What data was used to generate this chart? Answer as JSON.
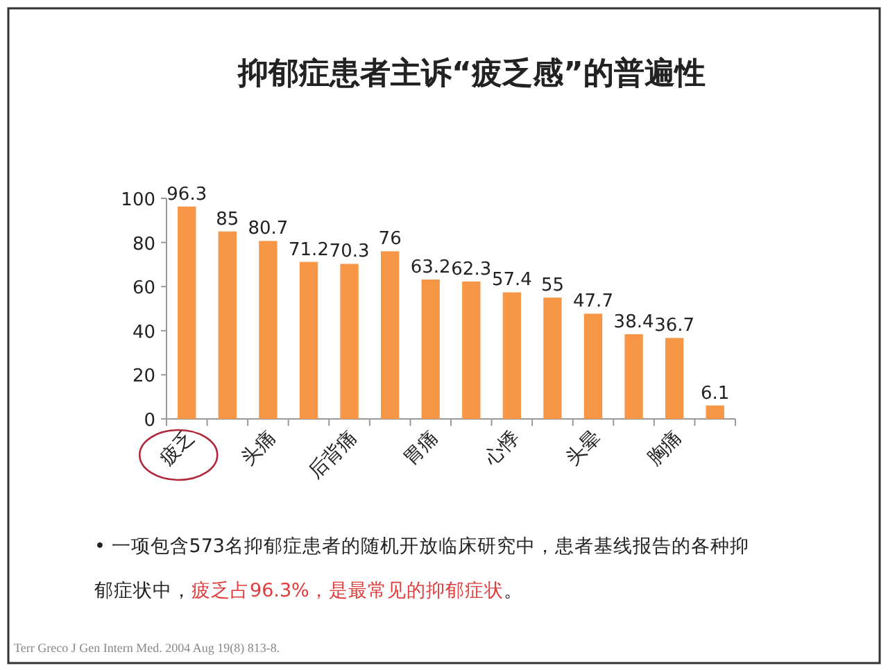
{
  "chart_data": {
    "type": "bar",
    "title": "抑郁症患者主诉“疲乏感”的普遍性",
    "categories": [
      "疲乏",
      null,
      "头痛",
      null,
      "后背痛",
      null,
      "胃痛",
      null,
      "心悸",
      null,
      "头晕",
      null,
      "胸痛",
      null
    ],
    "values": [
      96.3,
      85,
      80.7,
      71.2,
      70.3,
      76,
      63.2,
      62.3,
      57.4,
      55,
      47.7,
      38.4,
      36.7,
      6.1
    ],
    "color": "#f79646",
    "ylim": [
      0,
      100
    ],
    "yticks": [
      0,
      20,
      40,
      60,
      80,
      100
    ],
    "data_labels": true,
    "grid": false,
    "annotations": [
      "• 一项包含573名抑郁症患者的随机开放临床研究中，患者基线报告的各种抑郁症状中，",
      "疲乏占96.3%，是最常见的抑郁症状",
      "。",
      "Terr Greco J Gen Intern Med. 2004 Aug 19(8) 813-8."
    ]
  }
}
